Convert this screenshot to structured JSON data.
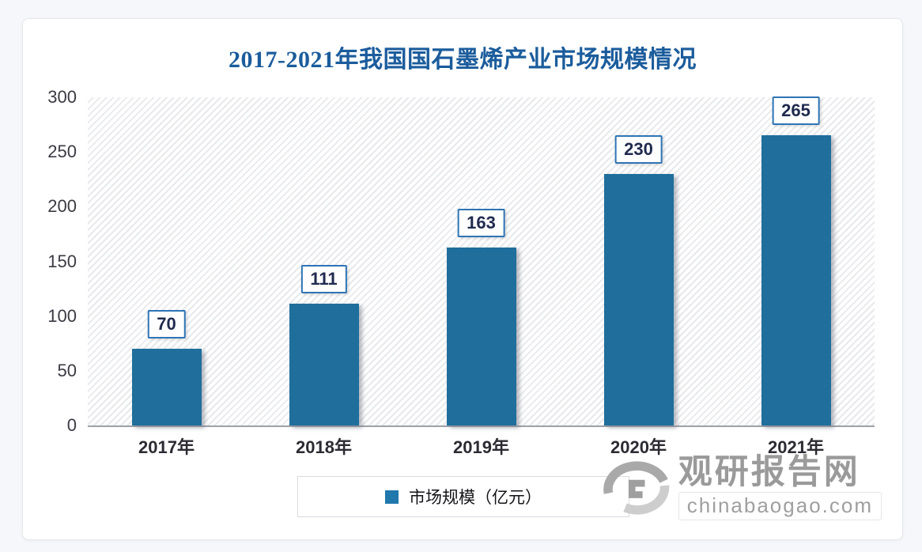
{
  "title": "2017-2021年我国国石墨烯产业市场规模情况",
  "chart_data": {
    "type": "bar",
    "title": "2017-2021年我国国石墨烯产业市场规模情况",
    "categories": [
      "2017年",
      "2018年",
      "2019年",
      "2020年",
      "2021年"
    ],
    "values": [
      70,
      111,
      163,
      230,
      265
    ],
    "series_name": "市场规模（亿元）",
    "xlabel": "",
    "ylabel": "",
    "ylim": [
      0,
      300
    ],
    "yticks": [
      0,
      50,
      100,
      150,
      200,
      250,
      300
    ],
    "grid": false,
    "legend_position": "bottom",
    "bar_color": "#1f6e9c",
    "plot_hatch": "diagonal-light-gray",
    "value_label_border_color": "#2e74b5"
  },
  "legend": {
    "label": "市场规模（亿元）",
    "marker_color": "#2078ac"
  },
  "watermark": {
    "name": "观研报告网",
    "domain": "chinabaogao.com",
    "logo": "swirl-logo"
  },
  "colors": {
    "title_text": "#1b5c9c",
    "bar": "#1f6e9c",
    "axis_line": "#9ea1a8",
    "tick_text": "#3a3a44",
    "watermark_gray": "#9a9a9a",
    "page_background": "#f6f7fa",
    "card_background": "#ffffff"
  }
}
